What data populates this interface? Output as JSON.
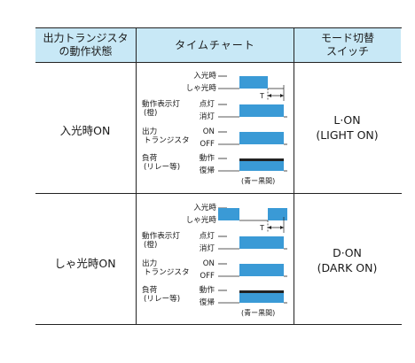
{
  "headers": {
    "state_line1": "出力トランジスタ",
    "state_line2": "の動作状態",
    "chart": "タイムチャート",
    "mode_line1": "モード切替",
    "mode_line2": "スイッチ"
  },
  "colors": {
    "header_bg": "#c8e8f6",
    "wave_fill": "#3a9ad6",
    "wave_dark": "#222222"
  },
  "rows": [
    {
      "state": "入光時ON",
      "mode_line1": "L·ON",
      "mode_line2": "(LIGHT ON)",
      "light_pattern": "pulse",
      "labels": {
        "light_on": "入光時",
        "light_off": "しゃ光時",
        "timer": "T",
        "indicator_l1": "動作表示灯",
        "indicator_l2": "(橙)",
        "ind_on": "点灯",
        "ind_off": "消灯",
        "trans_l1": "出力",
        "trans_l2": "トランジスタ",
        "tr_on": "ON",
        "tr_off": "OFF",
        "load_l1": "負荷",
        "load_l2": "(リレー等)",
        "ld_on": "動作",
        "ld_off": "復帰",
        "note": "(青ー黒間)"
      }
    },
    {
      "state": "しゃ光時ON",
      "mode_line1": "D·ON",
      "mode_line2": "(DARK ON)",
      "light_pattern": "inverted",
      "labels": {
        "light_on": "入光時",
        "light_off": "しゃ光時",
        "timer": "T",
        "indicator_l1": "動作表示灯",
        "indicator_l2": "(橙)",
        "ind_on": "点灯",
        "ind_off": "消灯",
        "trans_l1": "出力",
        "trans_l2": "トランジスタ",
        "tr_on": "ON",
        "tr_off": "OFF",
        "load_l1": "負荷",
        "load_l2": "(リレー等)",
        "ld_on": "動作",
        "ld_off": "復帰",
        "note": "(青ー黒間)"
      }
    }
  ]
}
